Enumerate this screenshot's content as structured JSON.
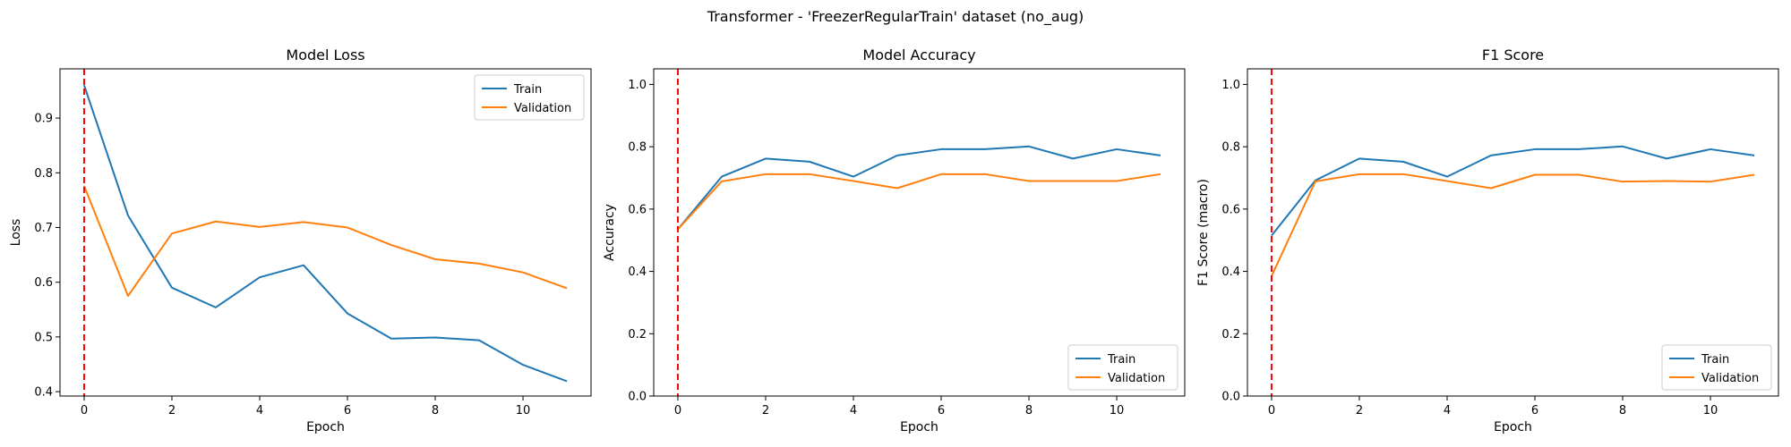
{
  "figure": {
    "suptitle": "Transformer - 'FreezerRegularTrain' dataset (no_aug)"
  },
  "colors": {
    "train": "#1f77b4",
    "validation": "#ff7f0e",
    "marker_line": "#ff0000"
  },
  "chart_data": [
    {
      "type": "line",
      "title": "Model Loss",
      "xlabel": "Epoch",
      "ylabel": "Loss",
      "x": [
        0,
        1,
        2,
        3,
        4,
        5,
        6,
        7,
        8,
        9,
        10,
        11
      ],
      "xlim": [
        -0.55,
        11.55
      ],
      "ylim": [
        0.392,
        0.99
      ],
      "xticks": [
        0,
        2,
        4,
        6,
        8,
        10
      ],
      "yticks": [
        0.4,
        0.5,
        0.6,
        0.7,
        0.8,
        0.9
      ],
      "ytick_labels": [
        "0.4",
        "0.5",
        "0.6",
        "0.7",
        "0.8",
        "0.9"
      ],
      "vline_x": 0,
      "legend_loc": "upper right",
      "series": [
        {
          "name": "Train",
          "values": [
            0.96,
            0.722,
            0.59,
            0.554,
            0.609,
            0.631,
            0.543,
            0.497,
            0.499,
            0.494,
            0.449,
            0.419
          ]
        },
        {
          "name": "Validation",
          "values": [
            0.776,
            0.575,
            0.689,
            0.711,
            0.701,
            0.71,
            0.7,
            0.668,
            0.642,
            0.634,
            0.618,
            0.589
          ]
        }
      ]
    },
    {
      "type": "line",
      "title": "Model Accuracy",
      "xlabel": "Epoch",
      "ylabel": "Accuracy",
      "x": [
        0,
        1,
        2,
        3,
        4,
        5,
        6,
        7,
        8,
        9,
        10,
        11
      ],
      "xlim": [
        -0.55,
        11.55
      ],
      "ylim": [
        0,
        1.05
      ],
      "xticks": [
        0,
        2,
        4,
        6,
        8,
        10
      ],
      "yticks": [
        0.0,
        0.2,
        0.4,
        0.6,
        0.8,
        1.0
      ],
      "ytick_labels": [
        "0.0",
        "0.2",
        "0.4",
        "0.6",
        "0.8",
        "1.0"
      ],
      "vline_x": 0,
      "legend_loc": "lower right",
      "series": [
        {
          "name": "Train",
          "values": [
            0.535,
            0.704,
            0.762,
            0.752,
            0.704,
            0.772,
            0.792,
            0.792,
            0.801,
            0.762,
            0.792,
            0.772
          ]
        },
        {
          "name": "Validation",
          "values": [
            0.535,
            0.689,
            0.712,
            0.712,
            0.69,
            0.667,
            0.712,
            0.712,
            0.69,
            0.69,
            0.69,
            0.712
          ]
        }
      ]
    },
    {
      "type": "line",
      "title": "F1 Score",
      "xlabel": "Epoch",
      "ylabel": "F1 Score (macro)",
      "x": [
        0,
        1,
        2,
        3,
        4,
        5,
        6,
        7,
        8,
        9,
        10,
        11
      ],
      "xlim": [
        -0.55,
        11.55
      ],
      "ylim": [
        0,
        1.05
      ],
      "xticks": [
        0,
        2,
        4,
        6,
        8,
        10
      ],
      "yticks": [
        0.0,
        0.2,
        0.4,
        0.6,
        0.8,
        1.0
      ],
      "ytick_labels": [
        "0.0",
        "0.2",
        "0.4",
        "0.6",
        "0.8",
        "1.0"
      ],
      "vline_x": 0,
      "legend_loc": "lower right",
      "series": [
        {
          "name": "Train",
          "values": [
            0.515,
            0.692,
            0.762,
            0.752,
            0.704,
            0.772,
            0.792,
            0.792,
            0.801,
            0.762,
            0.792,
            0.772
          ]
        },
        {
          "name": "Validation",
          "values": [
            0.385,
            0.689,
            0.712,
            0.712,
            0.69,
            0.667,
            0.71,
            0.71,
            0.688,
            0.69,
            0.688,
            0.71
          ]
        }
      ]
    }
  ]
}
